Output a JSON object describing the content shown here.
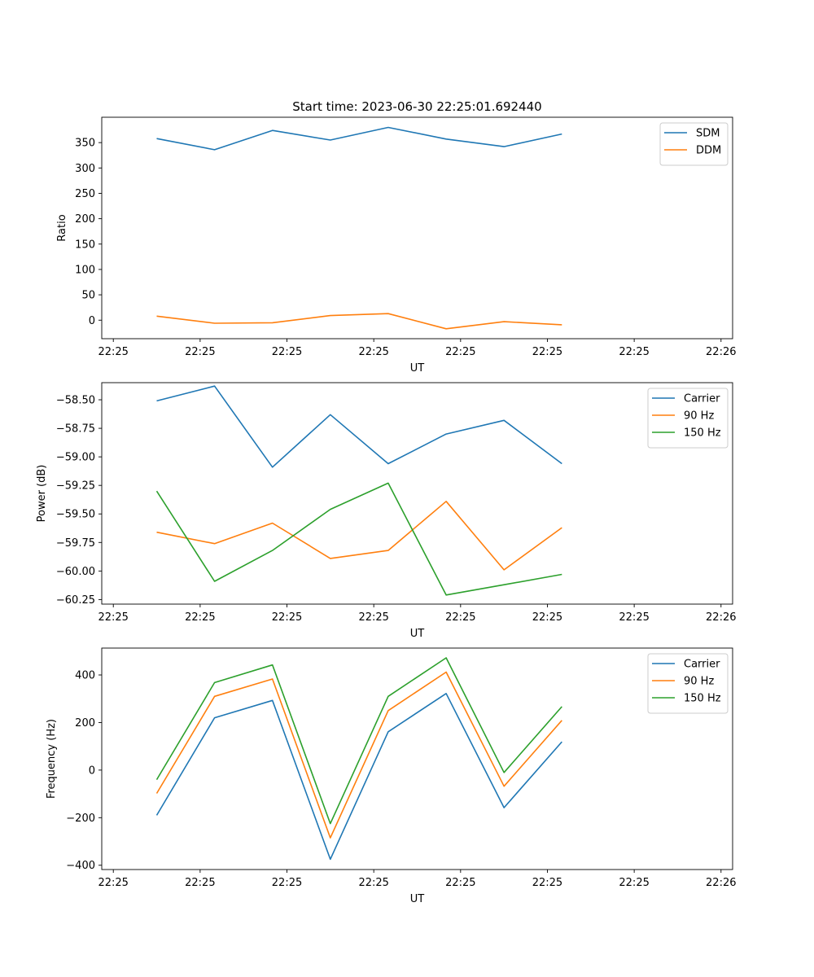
{
  "figure_title": "Start time: 2023-06-30 22:25:01.692440",
  "colors": {
    "blue": "#1f77b4",
    "orange": "#ff7f0e",
    "green": "#2ca02c",
    "axis": "#000000"
  },
  "chart_data": [
    {
      "type": "line",
      "xlabel": "UT",
      "ylabel": "Ratio",
      "x_tick_labels": [
        "22:25",
        "22:25",
        "22:25",
        "22:25",
        "22:25",
        "22:25",
        "22:25",
        "22:26"
      ],
      "x_tick_index": [
        -0.5,
        1,
        2.5,
        4,
        5.5,
        7,
        8.5,
        10
      ],
      "xlim": [
        -0.7,
        10.2
      ],
      "x": [
        0.25,
        1.25,
        2.25,
        3.25,
        4.25,
        5.25,
        6.25,
        7.25
      ],
      "yticks": [
        0,
        50,
        100,
        150,
        200,
        250,
        300,
        350
      ],
      "ylim": [
        -36.5,
        400
      ],
      "legend_position": "upper right",
      "series": [
        {
          "name": "SDM",
          "color": "#1f77b4",
          "values": [
            358,
            336,
            374,
            355,
            380,
            357,
            342,
            367
          ]
        },
        {
          "name": "DDM",
          "color": "#ff7f0e",
          "values": [
            8,
            -6,
            -5,
            9,
            13,
            -17,
            -3,
            -9
          ]
        }
      ]
    },
    {
      "type": "line",
      "xlabel": "UT",
      "ylabel": "Power (dB)",
      "x_tick_labels": [
        "22:25",
        "22:25",
        "22:25",
        "22:25",
        "22:25",
        "22:25",
        "22:25",
        "22:26"
      ],
      "x_tick_index": [
        -0.5,
        1,
        2.5,
        4,
        5.5,
        7,
        8.5,
        10
      ],
      "xlim": [
        -0.7,
        10.2
      ],
      "x": [
        0.25,
        1.25,
        2.25,
        3.25,
        4.25,
        5.25,
        6.25,
        7.25
      ],
      "yticks": [
        -58.5,
        -58.75,
        -59.0,
        -59.25,
        -59.5,
        -59.75,
        -60.0,
        -60.25
      ],
      "ytick_labels": [
        "−58.50",
        "−58.75",
        "−59.00",
        "−59.25",
        "−59.50",
        "−59.75",
        "−60.00",
        "−60.25"
      ],
      "ylim": [
        -60.29,
        -58.35
      ],
      "legend_position": "upper right",
      "series": [
        {
          "name": "Carrier",
          "color": "#1f77b4",
          "values": [
            -58.51,
            -58.38,
            -59.09,
            -58.63,
            -59.06,
            -58.8,
            -58.68,
            -59.06
          ]
        },
        {
          "name": "90 Hz",
          "color": "#ff7f0e",
          "values": [
            -59.66,
            -59.76,
            -59.58,
            -59.89,
            -59.82,
            -59.39,
            -59.99,
            -59.62
          ]
        },
        {
          "name": "150 Hz",
          "color": "#2ca02c",
          "values": [
            -59.3,
            -60.09,
            -59.82,
            -59.46,
            -59.23,
            -60.21,
            -60.12,
            -60.03
          ]
        }
      ]
    },
    {
      "type": "line",
      "xlabel": "UT",
      "ylabel": "Frequency (Hz)",
      "x_tick_labels": [
        "22:25",
        "22:25",
        "22:25",
        "22:25",
        "22:25",
        "22:25",
        "22:25",
        "22:26"
      ],
      "x_tick_index": [
        -0.5,
        1,
        2.5,
        4,
        5.5,
        7,
        8.5,
        10
      ],
      "xlim": [
        -0.7,
        10.2
      ],
      "x": [
        0.25,
        1.25,
        2.25,
        3.25,
        4.25,
        5.25,
        6.25,
        7.25
      ],
      "yticks": [
        400,
        200,
        0,
        -200,
        -400
      ],
      "ytick_labels": [
        "400",
        "200",
        "0",
        "−200",
        "−400"
      ],
      "ylim": [
        -418,
        513
      ],
      "legend_position": "upper right",
      "series": [
        {
          "name": "Carrier",
          "color": "#1f77b4",
          "values": [
            -190,
            220,
            293,
            -375,
            161,
            322,
            -158,
            119
          ]
        },
        {
          "name": "90 Hz",
          "color": "#ff7f0e",
          "values": [
            -98,
            310,
            383,
            -285,
            250,
            412,
            -68,
            209
          ]
        },
        {
          "name": "150 Hz",
          "color": "#2ca02c",
          "values": [
            -40,
            368,
            442,
            -225,
            310,
            472,
            -10,
            267
          ]
        }
      ]
    }
  ]
}
